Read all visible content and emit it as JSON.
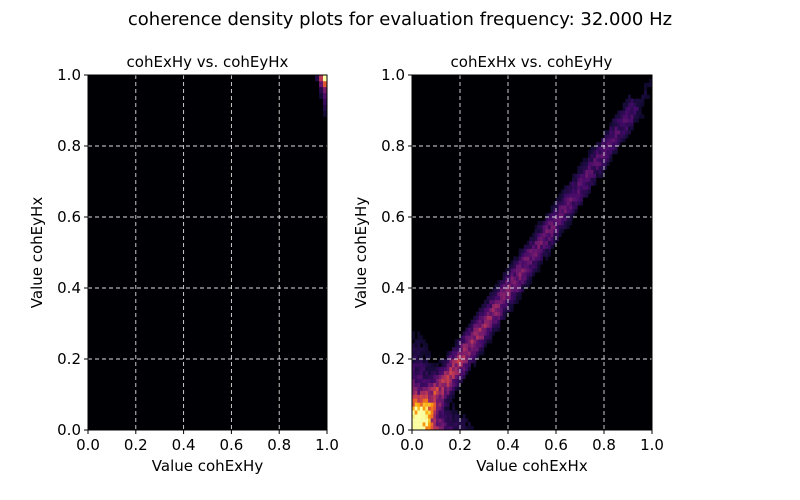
{
  "figure": {
    "title": "coherence density plots for evaluation frequency: 32.000 Hz"
  },
  "chart_data": [
    {
      "type": "heatmap",
      "title": "cohExHy vs. cohEyHx",
      "xlabel": "Value cohExHy",
      "ylabel": "Value cohEyHx",
      "xlim": [
        0,
        1
      ],
      "ylim": [
        0,
        1
      ],
      "xticks": [
        "0.0",
        "0.2",
        "0.4",
        "0.6",
        "0.8",
        "1.0"
      ],
      "yticks": [
        "0.0",
        "0.2",
        "0.4",
        "0.6",
        "0.8",
        "1.0"
      ],
      "grid": true,
      "colormap": "inferno",
      "density": {
        "pattern": "concentrated near (1.0, 1.0)",
        "peak": [
          0.99,
          0.99
        ]
      }
    },
    {
      "type": "heatmap",
      "title": "cohExHx vs. cohEyHy",
      "xlabel": "Value cohExHx",
      "ylabel": "Value cohEyHy",
      "xlim": [
        0,
        1
      ],
      "ylim": [
        0,
        1
      ],
      "xticks": [
        "0.0",
        "0.2",
        "0.4",
        "0.6",
        "0.8",
        "1.0"
      ],
      "yticks": [
        "0.0",
        "0.2",
        "0.4",
        "0.6",
        "0.8",
        "1.0"
      ],
      "grid": true,
      "colormap": "inferno",
      "density": {
        "pattern": "band along diagonal y = x, densest near origin",
        "peak": [
          0.02,
          0.02
        ]
      }
    }
  ],
  "colors": {
    "background": "#000004",
    "grid": "#e0e0e0"
  }
}
